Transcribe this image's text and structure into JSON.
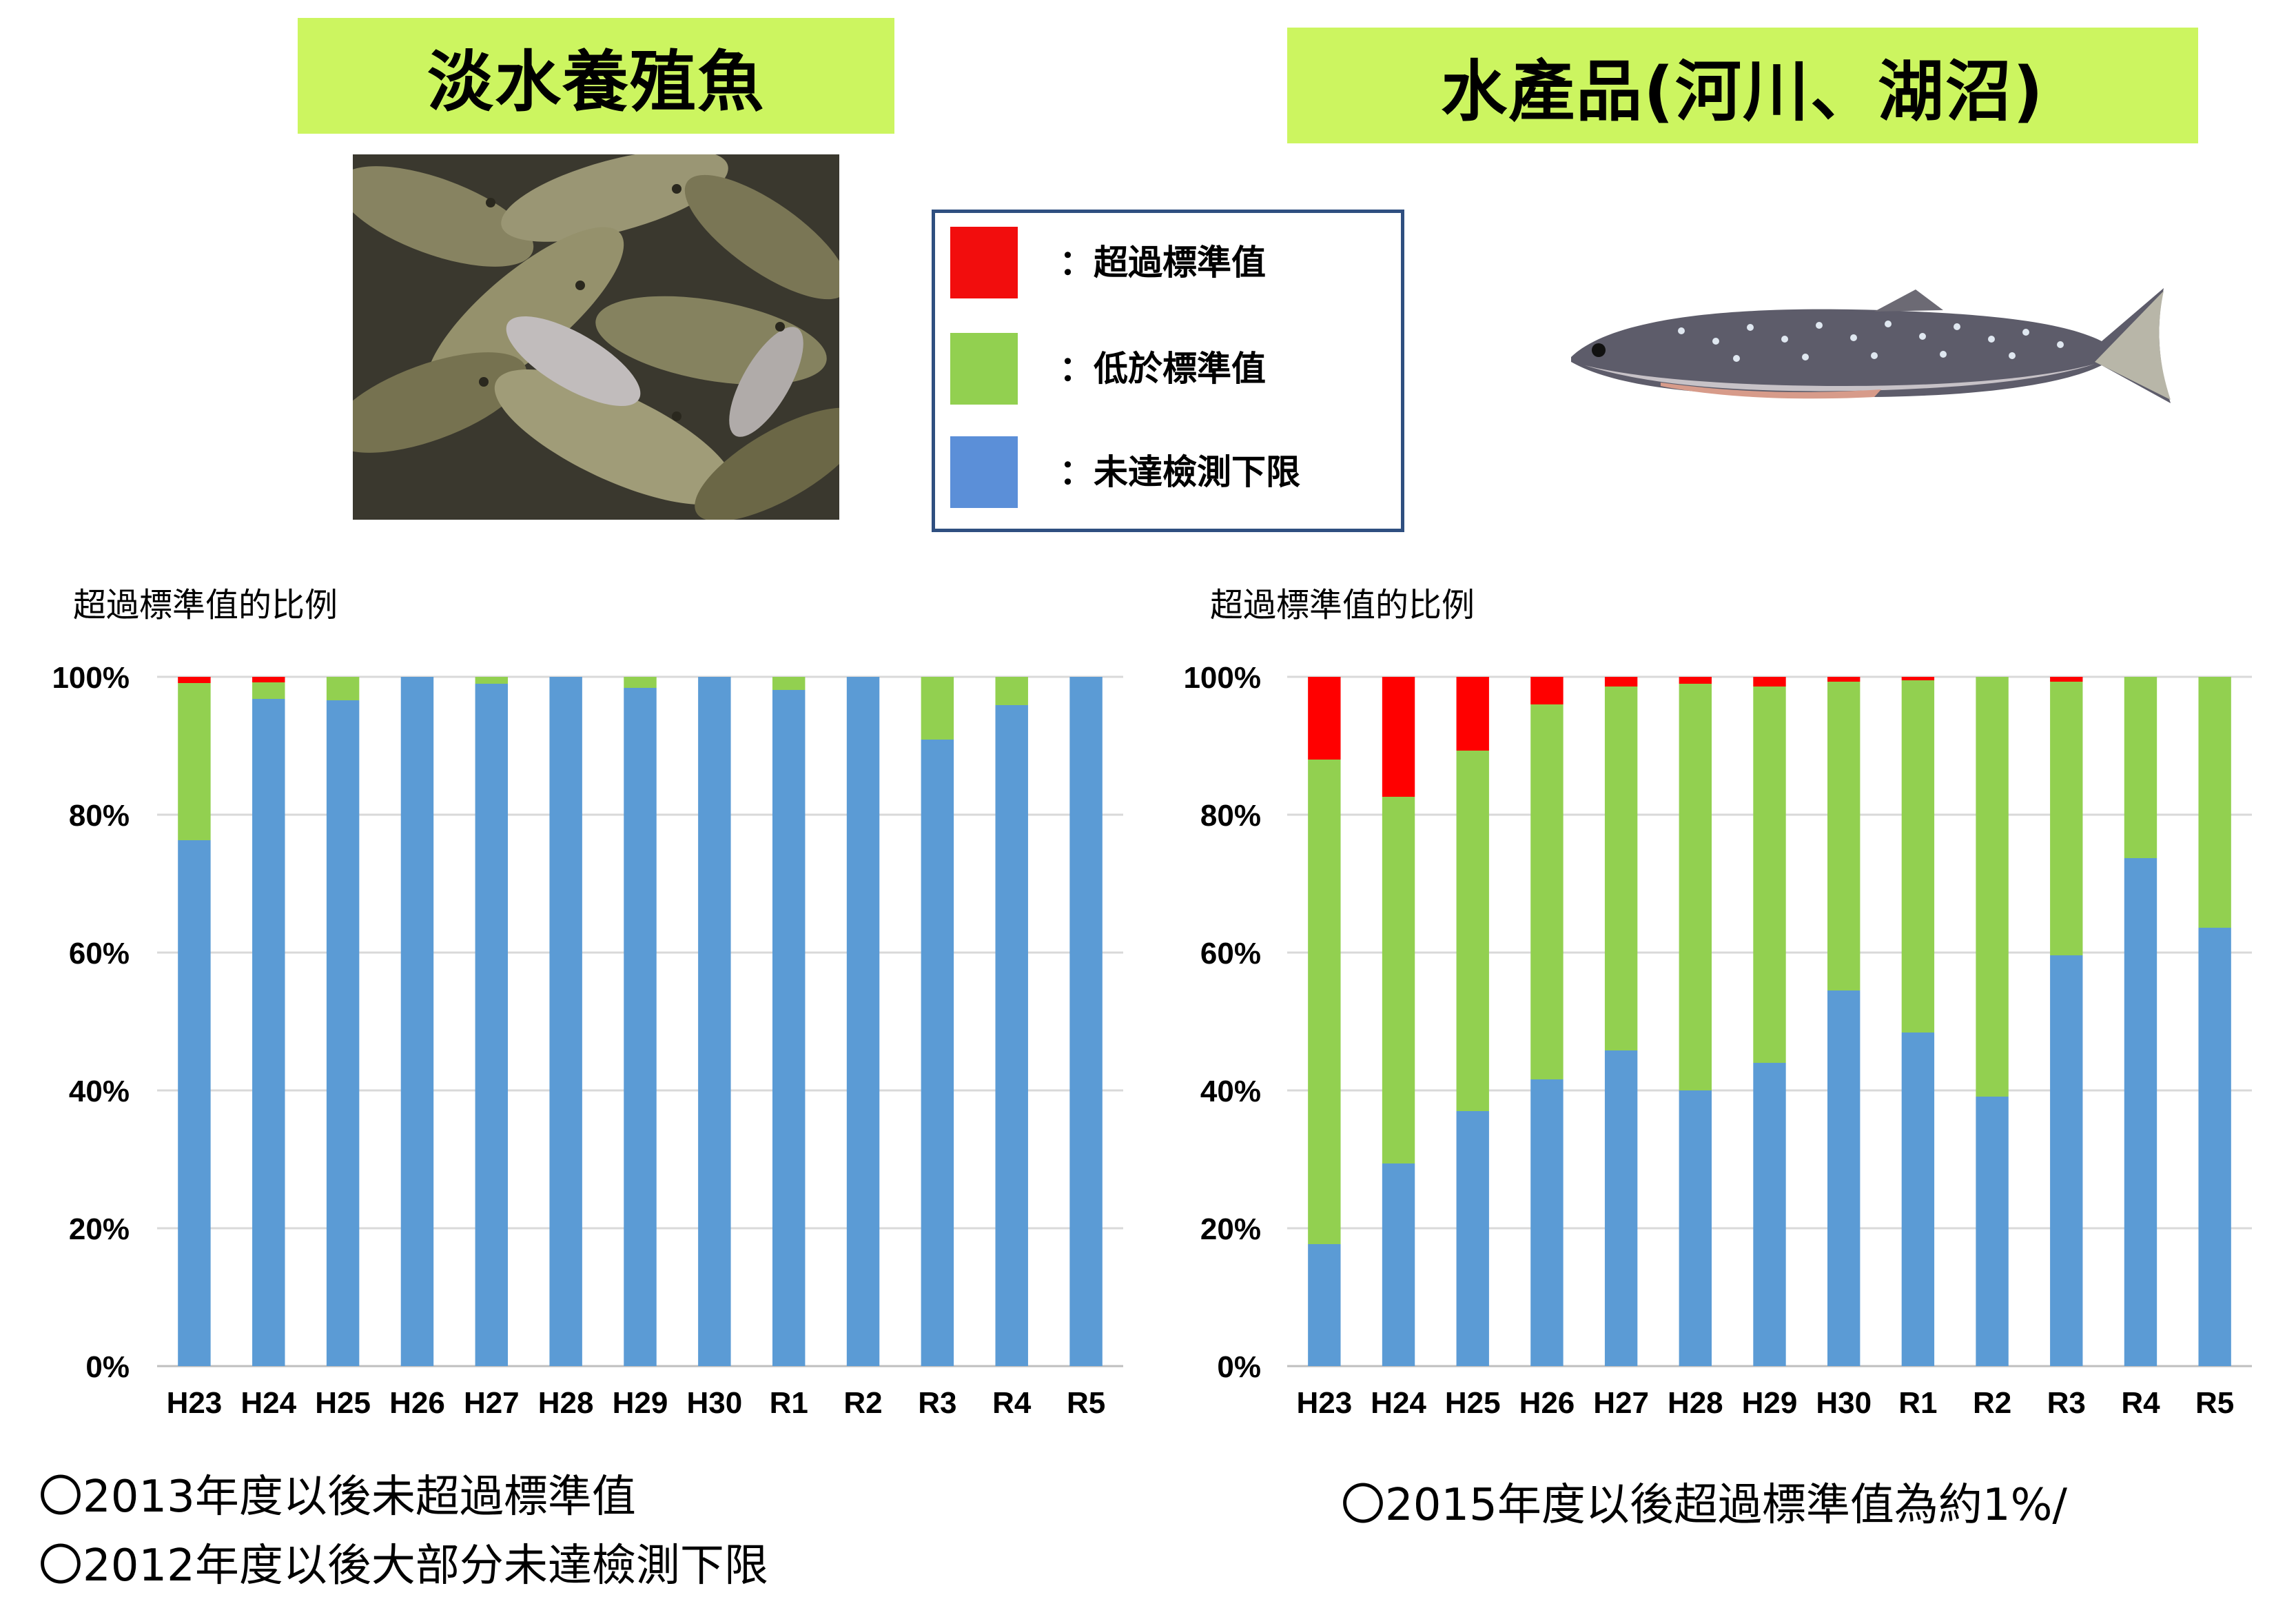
{
  "headers": {
    "left_title": "淡水養殖魚",
    "right_title": "水產品(河川、湖沼)"
  },
  "legend": {
    "items": [
      {
        "label": "：超過標準值",
        "color": "#f20d0d"
      },
      {
        "label": "：低於標準值",
        "color": "#92d050"
      },
      {
        "label": "：未達檢測下限",
        "color": "#5b8fd8"
      }
    ]
  },
  "notes": {
    "left_1": "〇2013年度以後未超過標準值",
    "left_2": "〇2012年度以後大部分未達檢測下限",
    "right_1": "〇2015年度以後超過標準值為約1%/"
  },
  "colors": {
    "exceed": "#ff0000",
    "below": "#92d050",
    "undetected": "#5b9bd5",
    "grid": "#d9d9d9"
  },
  "chart_data": [
    {
      "type": "bar",
      "stacked": true,
      "title": "超過標準值的比例",
      "categories": [
        "H23",
        "H24",
        "H25",
        "H26",
        "H27",
        "H28",
        "H29",
        "H30",
        "R1",
        "R2",
        "R3",
        "R4",
        "R5"
      ],
      "yticks": [
        "0%",
        "20%",
        "40%",
        "60%",
        "80%",
        "100%"
      ],
      "ylim": [
        0,
        100
      ],
      "grid": true,
      "series": [
        {
          "name": "未達檢測下限",
          "color": "#5b9bd5",
          "values": [
            76.3,
            96.8,
            96.6,
            100,
            99,
            100,
            98.4,
            100,
            98.1,
            100,
            90.9,
            95.9,
            100
          ]
        },
        {
          "name": "低於標準值",
          "color": "#92d050",
          "values": [
            22.8,
            2.4,
            3.4,
            0,
            1,
            0,
            1.6,
            0,
            1.9,
            0,
            9.1,
            4.1,
            0
          ]
        },
        {
          "name": "超過標準值",
          "color": "#ff0000",
          "values": [
            0.9,
            0.8,
            0,
            0,
            0,
            0,
            0,
            0,
            0,
            0,
            0,
            0,
            0
          ]
        }
      ]
    },
    {
      "type": "bar",
      "stacked": true,
      "title": "超過標準值的比例",
      "categories": [
        "H23",
        "H24",
        "H25",
        "H26",
        "H27",
        "H28",
        "H29",
        "H30",
        "R1",
        "R2",
        "R3",
        "R4",
        "R5"
      ],
      "yticks": [
        "0%",
        "20%",
        "40%",
        "60%",
        "80%",
        "100%"
      ],
      "ylim": [
        0,
        100
      ],
      "grid": true,
      "series": [
        {
          "name": "未達檢測下限",
          "color": "#5b9bd5",
          "values": [
            17.7,
            29.4,
            37,
            41.6,
            45.8,
            40,
            44,
            54.5,
            48.4,
            39.1,
            59.6,
            73.7,
            63.6
          ]
        },
        {
          "name": "低於標準值",
          "color": "#92d050",
          "values": [
            70.3,
            53.2,
            52.3,
            54.4,
            52.8,
            59,
            54.6,
            44.8,
            51.1,
            60.9,
            39.7,
            26.3,
            36.4
          ]
        },
        {
          "name": "超過標準值",
          "color": "#ff0000",
          "values": [
            12,
            17.4,
            10.7,
            4,
            1.4,
            1,
            1.4,
            0.7,
            0.5,
            0,
            0.7,
            0,
            0
          ]
        }
      ]
    }
  ]
}
